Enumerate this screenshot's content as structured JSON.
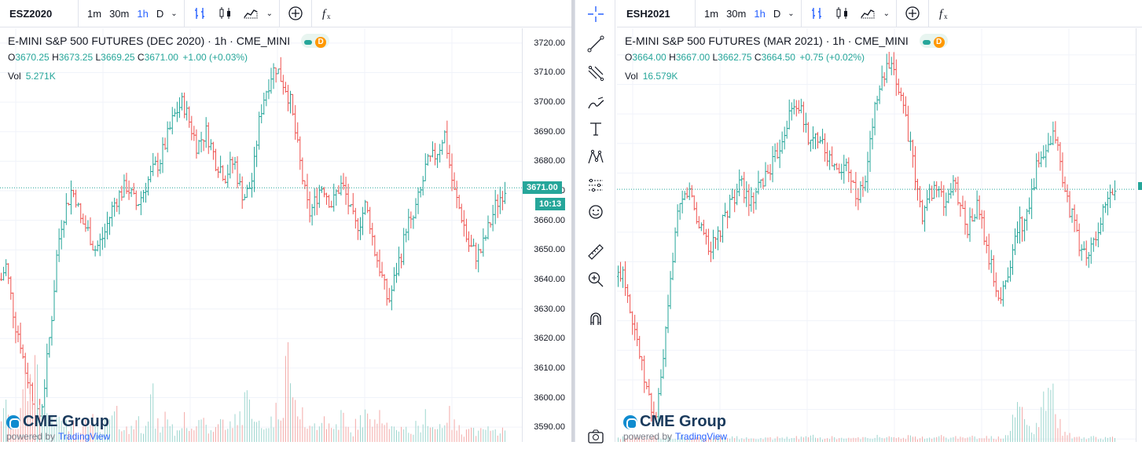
{
  "left": {
    "symbol": "ESZ2020",
    "timeframes": [
      "1m",
      "30m",
      "1h",
      "D"
    ],
    "active_timeframe": "1h",
    "title": "E-MINI S&P 500 FUTURES (DEC 2020) · 1h · CME_MINI",
    "status_badge": "D",
    "ohlc": {
      "o_label": "O",
      "o": "3670.25",
      "h_label": "H",
      "h": "3673.25",
      "l_label": "L",
      "l": "3669.25",
      "c_label": "C",
      "c": "3671.00",
      "change": "+1.00 (+0.03%)"
    },
    "vol_label": "Vol",
    "vol": "5.271K",
    "last_price": "3671.00",
    "countdown": "10:13",
    "brand": "CME Group",
    "powered_by": "powered by",
    "powered_brand": "TradingView"
  },
  "right": {
    "symbol": "ESH2021",
    "timeframes": [
      "1m",
      "30m",
      "1h",
      "D"
    ],
    "active_timeframe": "1h",
    "title": "E-MINI S&P 500 FUTURES (MAR 2021) · 1h · CME_MINI",
    "status_badge": "D",
    "ohlc": {
      "o_label": "O",
      "o": "3664.00",
      "h_label": "H",
      "h": "3667.00",
      "l_label": "L",
      "l": "3662.75",
      "c_label": "C",
      "c": "3664.50",
      "change": "+0.75 (+0.02%)"
    },
    "vol_label": "Vol",
    "vol": "16.579K",
    "brand": "CME Group",
    "powered_by": "powered by",
    "powered_brand": "TradingView"
  },
  "drawing_tools": [
    "crosshair-icon",
    "trend-line-icon",
    "fib-retracement-icon",
    "brush-icon",
    "text-icon",
    "pattern-icon",
    "measure-icon",
    "emoji-icon",
    "ruler-icon",
    "zoom-in-icon",
    "magnet-icon",
    "camera-icon"
  ],
  "colors": {
    "up": "#26a69a",
    "down": "#ef5350",
    "accent": "#2962ff"
  },
  "chart_data": [
    {
      "type": "candlestick",
      "title": "E-MINI S&P 500 FUTURES (DEC 2020) · 1h · CME_MINI",
      "interval": "1h",
      "ylim": [
        3585,
        3725
      ],
      "yticks": [
        "3720.00",
        "3710.00",
        "3700.00",
        "3690.00",
        "3680.00",
        "3670.00",
        "3660.00",
        "3650.00",
        "3640.00",
        "3630.00",
        "3620.00",
        "3610.00",
        "3600.00",
        "3590.00"
      ],
      "last": 3671.0,
      "close_path": [
        3640,
        3645,
        3635,
        3625,
        3620,
        3610,
        3605,
        3598,
        3592,
        3600,
        3615,
        3630,
        3650,
        3660,
        3665,
        3670,
        3668,
        3660,
        3658,
        3655,
        3650,
        3652,
        3655,
        3660,
        3665,
        3668,
        3670,
        3672,
        3668,
        3665,
        3668,
        3672,
        3675,
        3678,
        3680,
        3685,
        3690,
        3695,
        3698,
        3700,
        3695,
        3690,
        3685,
        3688,
        3690,
        3685,
        3680,
        3678,
        3675,
        3678,
        3680,
        3672,
        3668,
        3670,
        3675,
        3690,
        3700,
        3705,
        3710,
        3712,
        3708,
        3705,
        3700,
        3690,
        3680,
        3670,
        3662,
        3665,
        3670,
        3672,
        3668,
        3665,
        3670,
        3672,
        3668,
        3662,
        3658,
        3660,
        3665,
        3660,
        3650,
        3645,
        3638,
        3632,
        3638,
        3645,
        3650,
        3660,
        3658,
        3665,
        3670,
        3678,
        3680,
        3682,
        3685,
        3690,
        3680,
        3670,
        3665,
        3660,
        3652,
        3650,
        3648,
        3650,
        3655,
        3660,
        3665,
        3668,
        3671
      ],
      "volume_relative": [
        0.3,
        0.4,
        0.2,
        0.35,
        0.5,
        0.6,
        0.7,
        0.9,
        0.45,
        0.3,
        0.25,
        0.2,
        0.3,
        0.15,
        0.2,
        0.25,
        0.1,
        0.15,
        0.2,
        0.3,
        0.15,
        0.1,
        0.2,
        0.25,
        0.3,
        0.2,
        0.15,
        0.1,
        0.2,
        0.25,
        0.15,
        0.3,
        0.5,
        0.2,
        0.15,
        0.3,
        0.2,
        0.1,
        0.2,
        0.25,
        0.15,
        0.2,
        0.3,
        0.2,
        0.15,
        0.1,
        0.2,
        0.3,
        0.15,
        0.2,
        0.25,
        0.3,
        0.6,
        0.4,
        0.3,
        0.2,
        0.15,
        0.2,
        0.25,
        0.35,
        0.4,
        1.0,
        0.6,
        0.4,
        0.3,
        0.2,
        0.15,
        0.2,
        0.25,
        0.3,
        0.2,
        0.15,
        0.2,
        0.3,
        0.15,
        0.1,
        0.2,
        0.25,
        0.3,
        0.2,
        0.35,
        0.4,
        0.3,
        0.2,
        0.15,
        0.1,
        0.2,
        0.15,
        0.1,
        0.2,
        0.15,
        0.3,
        0.2,
        0.15,
        0.2,
        0.25,
        0.3,
        0.2,
        0.15,
        0.1,
        0.2,
        0.15,
        0.1,
        0.12,
        0.15,
        0.1,
        0.12,
        0.15,
        0.1
      ]
    },
    {
      "type": "candlestick",
      "title": "E-MINI S&P 500 FUTURES (MAR 2021) · 1h · CME_MINI",
      "interval": "1h",
      "ylim": [
        3579,
        3719
      ],
      "last": 3664.5,
      "close_path": [
        3635,
        3638,
        3630,
        3622,
        3615,
        3605,
        3598,
        3592,
        3586,
        3595,
        3610,
        3625,
        3645,
        3655,
        3660,
        3664,
        3662,
        3654,
        3652,
        3649,
        3644,
        3646,
        3649,
        3654,
        3659,
        3662,
        3664,
        3666,
        3662,
        3659,
        3662,
        3666,
        3669,
        3672,
        3674,
        3679,
        3684,
        3689,
        3692,
        3694,
        3689,
        3684,
        3679,
        3682,
        3684,
        3679,
        3674,
        3672,
        3669,
        3672,
        3674,
        3666,
        3662,
        3664,
        3669,
        3684,
        3694,
        3699,
        3704,
        3706,
        3702,
        3699,
        3694,
        3684,
        3674,
        3664,
        3656,
        3659,
        3664,
        3666,
        3662,
        3659,
        3664,
        3666,
        3662,
        3656,
        3652,
        3654,
        3659,
        3654,
        3644,
        3639,
        3632,
        3626,
        3632,
        3639,
        3644,
        3654,
        3652,
        3659,
        3664,
        3672,
        3674,
        3676,
        3679,
        3684,
        3674,
        3664,
        3659,
        3654,
        3646,
        3644,
        3642,
        3644,
        3649,
        3654,
        3659,
        3662,
        3664.5
      ],
      "volume_relative": [
        0.05,
        0.05,
        0.04,
        0.06,
        0.05,
        0.05,
        0.04,
        0.06,
        0.05,
        0.04,
        0.05,
        0.05,
        0.04,
        0.05,
        0.06,
        0.05,
        0.04,
        0.05,
        0.05,
        0.04,
        0.05,
        0.06,
        0.05,
        0.04,
        0.05,
        0.05,
        0.04,
        0.05,
        0.06,
        0.05,
        0.04,
        0.05,
        0.05,
        0.04,
        0.05,
        0.06,
        0.05,
        0.04,
        0.05,
        0.05,
        0.04,
        0.05,
        0.06,
        0.05,
        0.04,
        0.05,
        0.05,
        0.04,
        0.05,
        0.06,
        0.05,
        0.04,
        0.05,
        0.05,
        0.04,
        0.05,
        0.06,
        0.05,
        0.04,
        0.05,
        0.05,
        0.04,
        0.05,
        0.06,
        0.05,
        0.04,
        0.05,
        0.05,
        0.04,
        0.05,
        0.06,
        0.05,
        0.04,
        0.05,
        0.05,
        0.04,
        0.05,
        0.06,
        0.05,
        0.04,
        0.05,
        0.05,
        0.04,
        0.05,
        0.06,
        0.12,
        0.25,
        0.5,
        0.35,
        0.15,
        0.1,
        0.2,
        0.45,
        0.6,
        0.8,
        0.3,
        0.2,
        0.1,
        0.08,
        0.05,
        0.06,
        0.05,
        0.04,
        0.05,
        0.05,
        0.04,
        0.05,
        0.06,
        0.05
      ]
    }
  ]
}
